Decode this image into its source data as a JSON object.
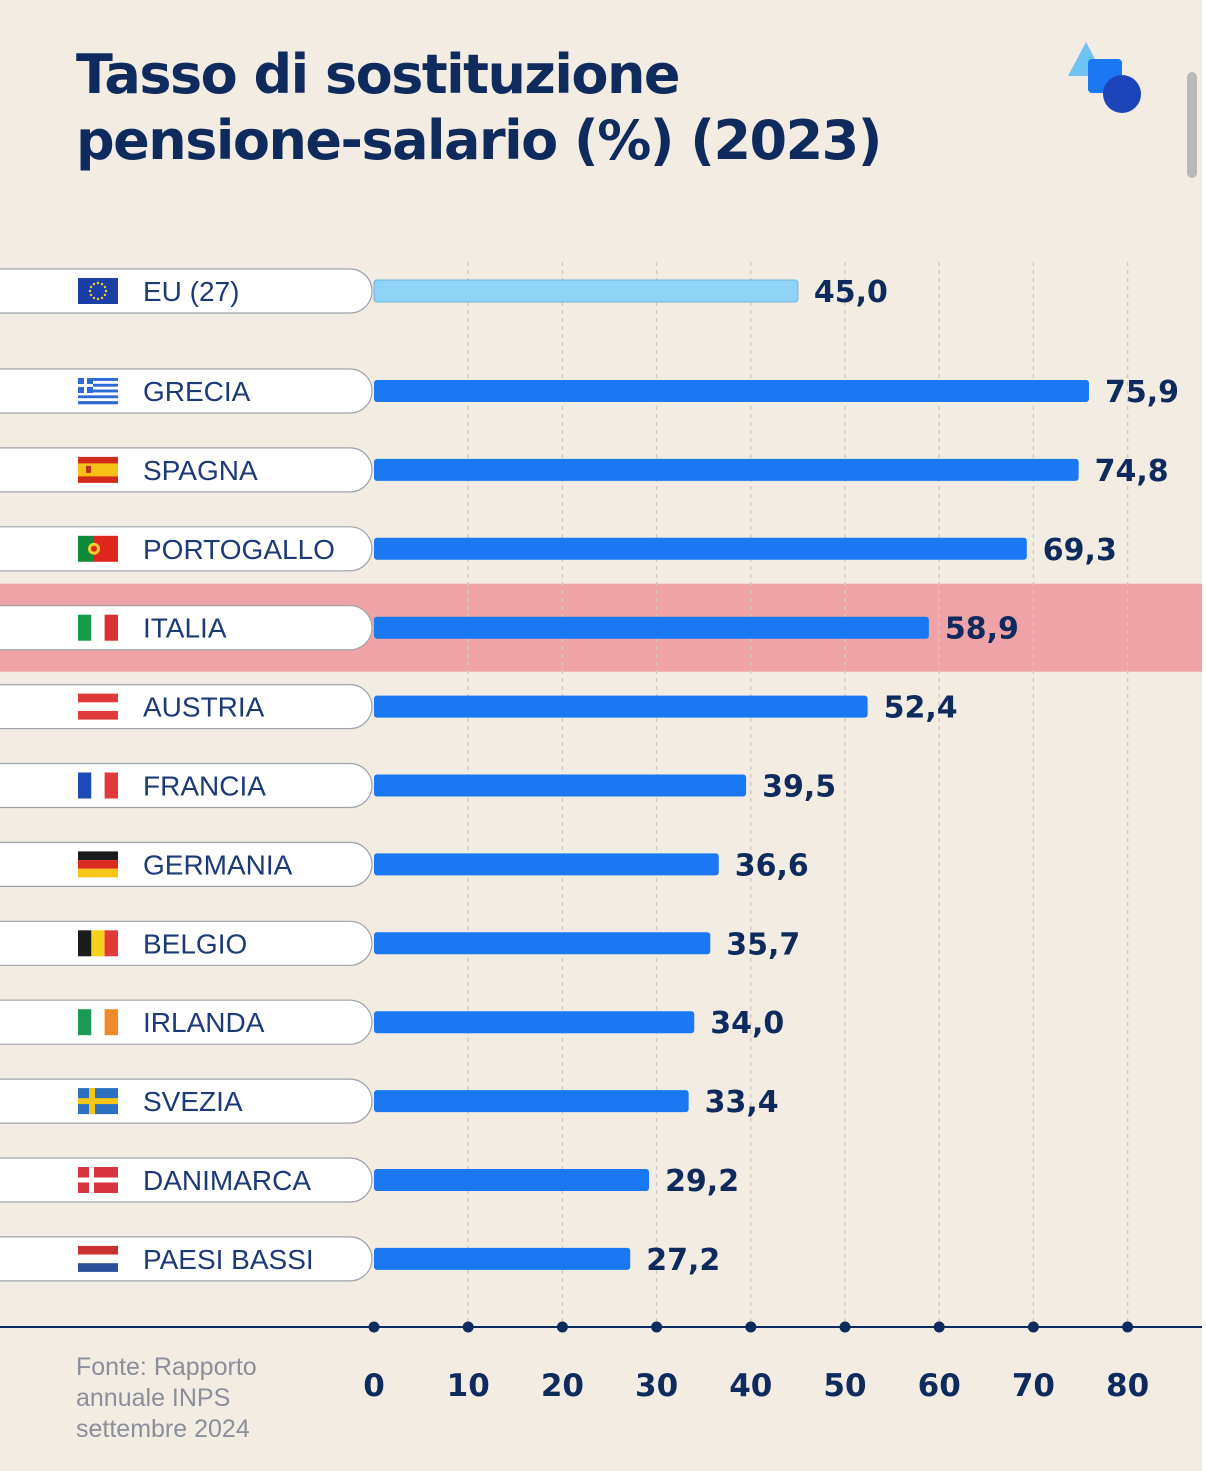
{
  "title_lines": [
    "Tasso di sostituzione",
    "pensione-salario (%) (2023)"
  ],
  "source_lines": [
    "Fonte: Rapporto",
    "annuale INPS",
    "settembre 2024"
  ],
  "colors": {
    "background": "#f2ece2",
    "title": "#0f2a5c",
    "bar": "#1a78f2",
    "bar_eu": "#8fd3f7",
    "highlight_row": "#f0a3a6",
    "axis": "#0f2a5c"
  },
  "chart_data": {
    "type": "bar",
    "orientation": "horizontal",
    "title": "Tasso di sostituzione pensione-salario (%) (2023)",
    "xlabel": "",
    "ylabel": "",
    "xlim": [
      0,
      80
    ],
    "ticks": [
      "0",
      "10",
      "20",
      "30",
      "40",
      "50",
      "60",
      "70",
      "80"
    ],
    "grid": "vertical dashed",
    "highlight": "ITALIA",
    "rows": [
      {
        "label": "EU (27)",
        "value": 45.0,
        "value_label": "45,0",
        "flag": "eu-flag-icon",
        "reference": true
      },
      {
        "label": "GRECIA",
        "value": 75.9,
        "value_label": "75,9",
        "flag": "greece-flag-icon"
      },
      {
        "label": "SPAGNA",
        "value": 74.8,
        "value_label": "74,8",
        "flag": "spain-flag-icon"
      },
      {
        "label": "PORTOGALLO",
        "value": 69.3,
        "value_label": "69,3",
        "flag": "portugal-flag-icon"
      },
      {
        "label": "ITALIA",
        "value": 58.9,
        "value_label": "58,9",
        "flag": "italy-flag-icon"
      },
      {
        "label": "AUSTRIA",
        "value": 52.4,
        "value_label": "52,4",
        "flag": "austria-flag-icon"
      },
      {
        "label": "FRANCIA",
        "value": 39.5,
        "value_label": "39,5",
        "flag": "france-flag-icon"
      },
      {
        "label": "GERMANIA",
        "value": 36.6,
        "value_label": "36,6",
        "flag": "germany-flag-icon"
      },
      {
        "label": "BELGIO",
        "value": 35.7,
        "value_label": "35,7",
        "flag": "belgium-flag-icon"
      },
      {
        "label": "IRLANDA",
        "value": 34.0,
        "value_label": "34,0",
        "flag": "ireland-flag-icon"
      },
      {
        "label": "SVEZIA",
        "value": 33.4,
        "value_label": "33,4",
        "flag": "sweden-flag-icon"
      },
      {
        "label": "DANIMARCA",
        "value": 29.2,
        "value_label": "29,2",
        "flag": "denmark-flag-icon"
      },
      {
        "label": "PAESI BASSI",
        "value": 27.2,
        "value_label": "27,2",
        "flag": "netherlands-flag-icon"
      }
    ]
  }
}
